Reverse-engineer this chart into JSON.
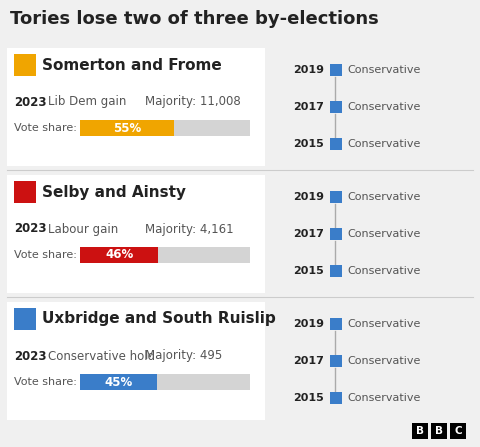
{
  "title": "Tories lose two of three by-elections",
  "background_color": "#f0f0f0",
  "white_panel_color": "#ffffff",
  "constituencies": [
    {
      "name": "Somerton and Frome",
      "icon_color": "#f0a500",
      "result_year": "2023",
      "result_text": "Lib Dem gain",
      "majority": "Majority: 11,008",
      "vote_share": 55,
      "bar_color": "#f0a500",
      "pct_label": "55%",
      "years": [
        "2019",
        "2017",
        "2015"
      ],
      "prev_winners": [
        "Conservative",
        "Conservative",
        "Conservative"
      ],
      "prev_color": "#3a7dc9"
    },
    {
      "name": "Selby and Ainsty",
      "icon_color": "#cc1111",
      "result_year": "2023",
      "result_text": "Labour gain",
      "majority": "Majority: 4,161",
      "vote_share": 46,
      "bar_color": "#cc1111",
      "pct_label": "46%",
      "years": [
        "2019",
        "2017",
        "2015"
      ],
      "prev_winners": [
        "Conservative",
        "Conservative",
        "Conservative"
      ],
      "prev_color": "#3a7dc9"
    },
    {
      "name": "Uxbridge and South Ruislip",
      "icon_color": "#3a7dc9",
      "result_year": "2023",
      "result_text": "Conservative hold",
      "majority": "Majority: 495",
      "vote_share": 45,
      "bar_color": "#3a7dc9",
      "pct_label": "45%",
      "years": [
        "2019",
        "2017",
        "2015"
      ],
      "prev_winners": [
        "Conservative",
        "Conservative",
        "Conservative"
      ],
      "prev_color": "#3a7dc9"
    }
  ],
  "separator_color": "#cccccc",
  "text_dark": "#222222",
  "text_gray": "#555555",
  "bar_bg_color": "#d4d4d4",
  "bbc_bg": "#000000",
  "bbc_text": "#ffffff"
}
